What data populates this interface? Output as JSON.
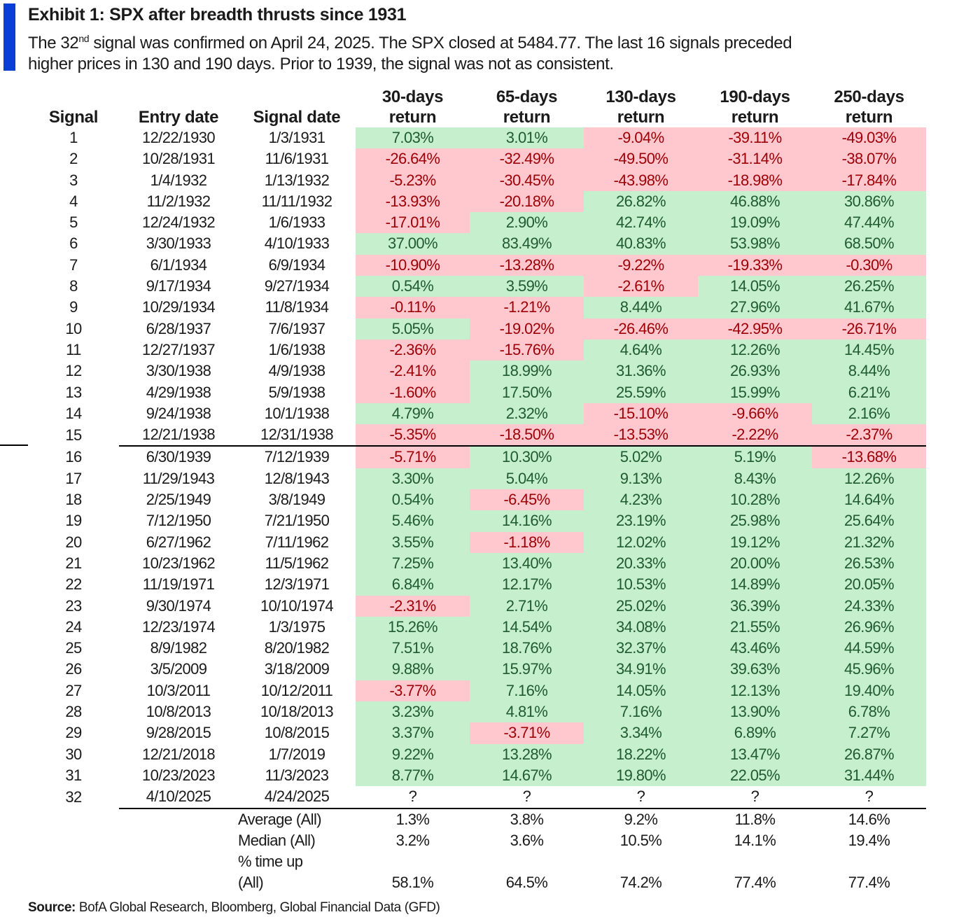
{
  "header": {
    "title": "Exhibit 1: SPX after breadth thrusts since 1931",
    "subtitle_pre": "The 32",
    "subtitle_sup": "nd",
    "subtitle_line1": " signal was confirmed on April 24, 2025. The SPX closed at 5484.77. The last 16 signals preceded",
    "subtitle_line2": "higher prices in 130 and 190 days. Prior to 1939, the signal was not as consistent."
  },
  "colors": {
    "accent": "#0a3fd6",
    "positive_bg": "#c6efce",
    "negative_bg": "#ffc7ce",
    "positive_text": "#1f5b2e",
    "negative_text": "#9c0006"
  },
  "chart_data": {
    "type": "table",
    "columns": [
      {
        "line1": "",
        "line2": "Signal"
      },
      {
        "line1": "",
        "line2": "Entry date"
      },
      {
        "line1": "",
        "line2": "Signal date"
      },
      {
        "line1": "30-days",
        "line2": "return"
      },
      {
        "line1": "65-days",
        "line2": "return"
      },
      {
        "line1": "130-days",
        "line2": "return"
      },
      {
        "line1": "190-days",
        "line2": "return"
      },
      {
        "line1": "250-days",
        "line2": "return"
      }
    ],
    "rows": [
      [
        "1",
        "12/22/1930",
        "1/3/1931",
        "7.03%",
        "3.01%",
        "-9.04%",
        "-39.11%",
        "-49.03%"
      ],
      [
        "2",
        "10/28/1931",
        "11/6/1931",
        "-26.64%",
        "-32.49%",
        "-49.50%",
        "-31.14%",
        "-38.07%"
      ],
      [
        "3",
        "1/4/1932",
        "1/13/1932",
        "-5.23%",
        "-30.45%",
        "-43.98%",
        "-18.98%",
        "-17.84%"
      ],
      [
        "4",
        "11/2/1932",
        "11/11/1932",
        "-13.93%",
        "-20.18%",
        "26.82%",
        "46.88%",
        "30.86%"
      ],
      [
        "5",
        "12/24/1932",
        "1/6/1933",
        "-17.01%",
        "2.90%",
        "42.74%",
        "19.09%",
        "47.44%"
      ],
      [
        "6",
        "3/30/1933",
        "4/10/1933",
        "37.00%",
        "83.49%",
        "40.83%",
        "53.98%",
        "68.50%"
      ],
      [
        "7",
        "6/1/1934",
        "6/9/1934",
        "-10.90%",
        "-13.28%",
        "-9.22%",
        "-19.33%",
        "-0.30%"
      ],
      [
        "8",
        "9/17/1934",
        "9/27/1934",
        "0.54%",
        "3.59%",
        "-2.61%",
        "14.05%",
        "26.25%"
      ],
      [
        "9",
        "10/29/1934",
        "11/8/1934",
        "-0.11%",
        "-1.21%",
        "8.44%",
        "27.96%",
        "41.67%"
      ],
      [
        "10",
        "6/28/1937",
        "7/6/1937",
        "5.05%",
        "-19.02%",
        "-26.46%",
        "-42.95%",
        "-26.71%"
      ],
      [
        "11",
        "12/27/1937",
        "1/6/1938",
        "-2.36%",
        "-15.76%",
        "4.64%",
        "12.26%",
        "14.45%"
      ],
      [
        "12",
        "3/30/1938",
        "4/9/1938",
        "-2.41%",
        "18.99%",
        "31.36%",
        "26.93%",
        "8.44%"
      ],
      [
        "13",
        "4/29/1938",
        "5/9/1938",
        "-1.60%",
        "17.50%",
        "25.59%",
        "15.99%",
        "6.21%"
      ],
      [
        "14",
        "9/24/1938",
        "10/1/1938",
        "4.79%",
        "2.32%",
        "-15.10%",
        "-9.66%",
        "2.16%"
      ],
      [
        "15",
        "12/21/1938",
        "12/31/1938",
        "-5.35%",
        "-18.50%",
        "-13.53%",
        "-2.22%",
        "-2.37%"
      ],
      [
        "16",
        "6/30/1939",
        "7/12/1939",
        "-5.71%",
        "10.30%",
        "5.02%",
        "5.19%",
        "-13.68%"
      ],
      [
        "17",
        "11/29/1943",
        "12/8/1943",
        "3.30%",
        "5.04%",
        "9.13%",
        "8.43%",
        "12.26%"
      ],
      [
        "18",
        "2/25/1949",
        "3/8/1949",
        "0.54%",
        "-6.45%",
        "4.23%",
        "10.28%",
        "14.64%"
      ],
      [
        "19",
        "7/12/1950",
        "7/21/1950",
        "5.46%",
        "14.16%",
        "23.19%",
        "25.98%",
        "25.64%"
      ],
      [
        "20",
        "6/27/1962",
        "7/11/1962",
        "3.55%",
        "-1.18%",
        "12.02%",
        "19.12%",
        "21.32%"
      ],
      [
        "21",
        "10/23/1962",
        "11/5/1962",
        "7.25%",
        "13.40%",
        "20.33%",
        "20.00%",
        "26.53%"
      ],
      [
        "22",
        "11/19/1971",
        "12/3/1971",
        "6.84%",
        "12.17%",
        "10.53%",
        "14.89%",
        "20.05%"
      ],
      [
        "23",
        "9/30/1974",
        "10/10/1974",
        "-2.31%",
        "2.71%",
        "25.02%",
        "36.39%",
        "24.33%"
      ],
      [
        "24",
        "12/23/1974",
        "1/3/1975",
        "15.26%",
        "14.54%",
        "34.08%",
        "21.55%",
        "26.96%"
      ],
      [
        "25",
        "8/9/1982",
        "8/20/1982",
        "7.51%",
        "18.76%",
        "32.37%",
        "43.46%",
        "44.59%"
      ],
      [
        "26",
        "3/5/2009",
        "3/18/2009",
        "9.88%",
        "15.97%",
        "34.91%",
        "39.63%",
        "45.96%"
      ],
      [
        "27",
        "10/3/2011",
        "10/12/2011",
        "-3.77%",
        "7.16%",
        "14.05%",
        "12.13%",
        "19.40%"
      ],
      [
        "28",
        "10/8/2013",
        "10/18/2013",
        "3.23%",
        "4.81%",
        "7.16%",
        "13.90%",
        "6.78%"
      ],
      [
        "29",
        "9/28/2015",
        "10/8/2015",
        "3.37%",
        "-3.71%",
        "3.34%",
        "6.89%",
        "7.27%"
      ],
      [
        "30",
        "12/21/2018",
        "1/7/2019",
        "9.22%",
        "13.28%",
        "18.22%",
        "13.47%",
        "26.87%"
      ],
      [
        "31",
        "10/23/2023",
        "11/3/2023",
        "8.77%",
        "14.67%",
        "19.80%",
        "22.05%",
        "31.44%"
      ],
      [
        "32",
        "4/10/2025",
        "4/24/2025",
        "?",
        "?",
        "?",
        "?",
        "?"
      ]
    ],
    "summary": [
      {
        "label": "Average (All)",
        "values": [
          "1.3%",
          "3.8%",
          "9.2%",
          "11.8%",
          "14.6%"
        ]
      },
      {
        "label": "Median (All)",
        "values": [
          "3.2%",
          "3.6%",
          "10.5%",
          "14.1%",
          "19.4%"
        ]
      },
      {
        "label": "% time up",
        "values": [
          "",
          "",
          "",
          "",
          ""
        ]
      },
      {
        "label": "(All)",
        "values": [
          "58.1%",
          "64.5%",
          "74.2%",
          "77.4%",
          "77.4%"
        ]
      }
    ],
    "cell_coloring": "green for positive returns, red for negative returns"
  },
  "footer": {
    "source_label": "Source:",
    "source_text": " BofA Global Research, Bloomberg, Global Financial Data (GFD)"
  }
}
